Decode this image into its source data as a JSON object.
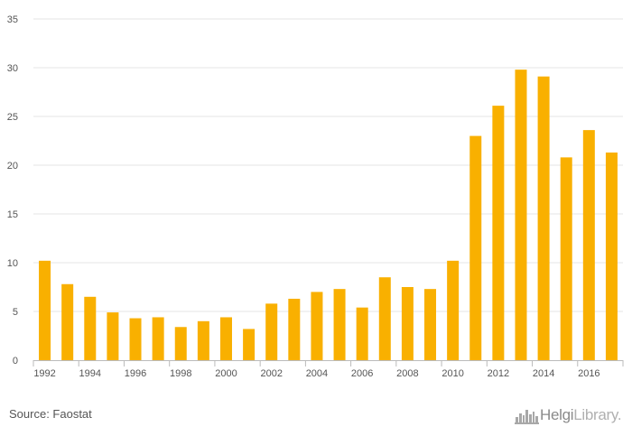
{
  "chart_data": {
    "type": "bar",
    "title": "",
    "xlabel": "",
    "ylabel": "",
    "categories": [
      "1992",
      "1993",
      "1994",
      "1995",
      "1996",
      "1997",
      "1998",
      "1999",
      "2000",
      "2001",
      "2002",
      "2003",
      "2004",
      "2005",
      "2006",
      "2007",
      "2008",
      "2009",
      "2010",
      "2011",
      "2012",
      "2013",
      "2014",
      "2015",
      "2016",
      "2017"
    ],
    "x_tick_labels": [
      "1992",
      "1994",
      "1996",
      "1998",
      "2000",
      "2002",
      "2004",
      "2006",
      "2008",
      "2010",
      "2012",
      "2014",
      "2016"
    ],
    "values": [
      10.2,
      7.8,
      6.5,
      4.9,
      4.3,
      4.4,
      3.4,
      4.0,
      4.4,
      3.2,
      5.8,
      6.3,
      7.0,
      7.3,
      5.4,
      8.5,
      7.5,
      7.3,
      10.2,
      23.0,
      26.1,
      29.8,
      29.1,
      20.8,
      23.6,
      21.3
    ],
    "ylim": [
      0,
      35
    ],
    "y_ticks": [
      0,
      5,
      10,
      15,
      20,
      25,
      30,
      35
    ],
    "grid": true,
    "bar_color": "#F9B000"
  },
  "footer": {
    "source": "Source: Faostat",
    "brand_part1": "Helgi",
    "brand_part2": "Library."
  },
  "colors": {
    "grid": "#e6e6e6",
    "axis": "#bbbbbb",
    "text": "#555555"
  },
  "icons": {
    "brand_logo": "skyline-icon"
  }
}
